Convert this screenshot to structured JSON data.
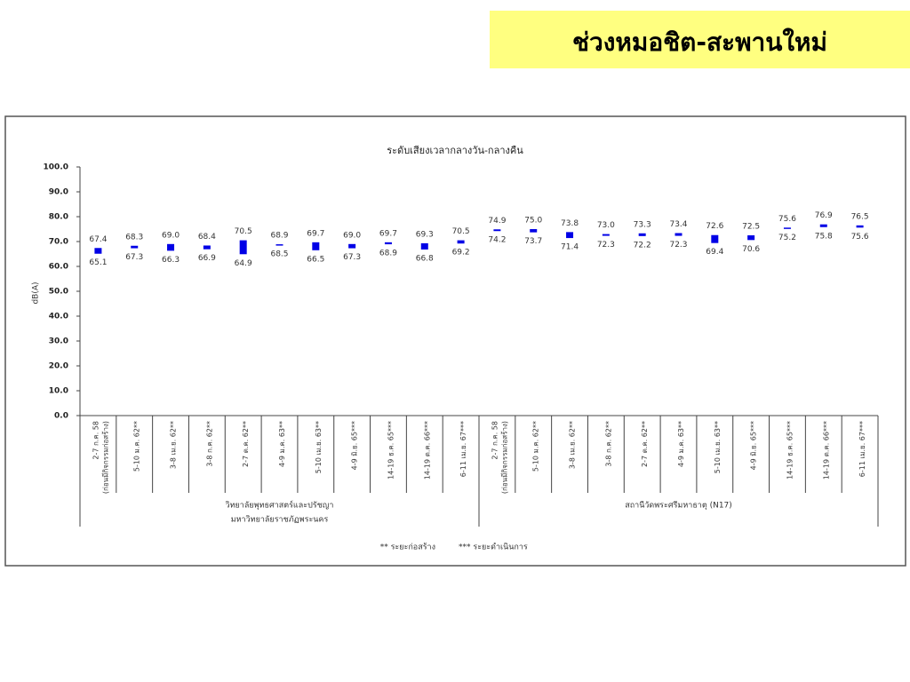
{
  "header": {
    "title": "ช่วงหมอชิต-สะพานใหม่"
  },
  "chart_data": {
    "type": "floating-bar",
    "title": "ระดับเสียงเวลากลางวัน-กลางคืน",
    "y_label": "dB(A)",
    "color": "#0000e6",
    "ylim": [
      0,
      100
    ],
    "yticks": [
      {
        "value": 0,
        "label": "0.0"
      },
      {
        "value": 10,
        "label": "10.0"
      },
      {
        "value": 20,
        "label": "20.0"
      },
      {
        "value": 30,
        "label": "30.0"
      },
      {
        "value": 40,
        "label": "40.0"
      },
      {
        "value": 50,
        "label": "50.0"
      },
      {
        "value": 60,
        "label": "60.0"
      },
      {
        "value": 70,
        "label": "70.0"
      },
      {
        "value": 80,
        "label": "80.0"
      },
      {
        "value": 90,
        "label": "90.0"
      },
      {
        "value": 100,
        "label": "100.0"
      }
    ],
    "groups": [
      {
        "label": [
          "วิทยาลัยพุทธศาสตร์และปรัชญา",
          "มหาวิทยาลัยราชภัฏพระนคร"
        ],
        "categories": [
          [
            "2-7 ก.ค. 58",
            "(ก่อนมีกิจกรรมก่อสร้าง)"
          ],
          [
            "5-10 ม.ค. 62**"
          ],
          [
            "3-8 เม.ย. 62**"
          ],
          [
            "3-8 ก.ค. 62**"
          ],
          [
            "2-7 ต.ค. 62**"
          ],
          [
            "4-9 ม.ค. 63**"
          ],
          [
            "5-10 เม.ย. 63**"
          ],
          [
            "4-9 มิ.ย. 65***"
          ],
          [
            "14-19 ธ.ค. 65***"
          ],
          [
            "14-19 ต.ค. 66***"
          ],
          [
            "6-11 เม.ย. 67***"
          ]
        ],
        "high": {
          "values": [
            67.4,
            68.3,
            69.0,
            68.4,
            70.5,
            68.9,
            69.7,
            69.0,
            69.7,
            69.3,
            70.5
          ],
          "value_labels": [
            "67.4",
            "68.3",
            "69.0",
            "68.4",
            "70.5",
            "68.9",
            "69.7",
            "69.0",
            "69.7",
            "69.3",
            "70.5"
          ]
        },
        "low": {
          "values": [
            65.1,
            67.3,
            66.3,
            66.9,
            64.9,
            68.5,
            66.5,
            67.3,
            68.9,
            66.8,
            69.2
          ],
          "value_labels": [
            "65.1",
            "67.3",
            "66.3",
            "66.9",
            "64.9",
            "68.5",
            "66.5",
            "67.3",
            "68.9",
            "66.8",
            "69.2"
          ]
        }
      },
      {
        "label": [
          "สถานีวัดพระศรีมหาธาตุ (N17)"
        ],
        "categories": [
          [
            "2-7 ก.ค. 58",
            "(ก่อนมีกิจกรรมก่อสร้าง)"
          ],
          [
            "5-10 ม.ค. 62**"
          ],
          [
            "3-8 เม.ย. 62**"
          ],
          [
            "3-8 ก.ค. 62**"
          ],
          [
            "2-7 ต.ค. 62**"
          ],
          [
            "4-9 ม.ค. 63**"
          ],
          [
            "5-10 เม.ย. 63**"
          ],
          [
            "4-9 มิ.ย. 65***"
          ],
          [
            "14-19 ธ.ค. 65***"
          ],
          [
            "14-19 ต.ค. 66***"
          ],
          [
            "6-11 เม.ย. 67***"
          ]
        ],
        "high": {
          "values": [
            74.9,
            75.0,
            73.8,
            73.0,
            73.3,
            73.4,
            72.6,
            72.5,
            75.6,
            76.9,
            76.5
          ],
          "value_labels": [
            "74.9",
            "75.0",
            "73.8",
            "73.0",
            "73.3",
            "73.4",
            "72.6",
            "72.5",
            "75.6",
            "76.9",
            "76.5"
          ]
        },
        "low": {
          "values": [
            74.2,
            73.7,
            71.4,
            72.3,
            72.2,
            72.3,
            69.4,
            70.6,
            75.2,
            75.8,
            75.6
          ],
          "value_labels": [
            "74.2",
            "73.7",
            "71.4",
            "72.3",
            "72.2",
            "72.3",
            "69.4",
            "70.6",
            "75.2",
            "75.8",
            "75.6"
          ]
        }
      }
    ],
    "footnotes": [
      "** ระยะก่อสร้าง",
      "*** ระยะดำเนินการ"
    ]
  }
}
